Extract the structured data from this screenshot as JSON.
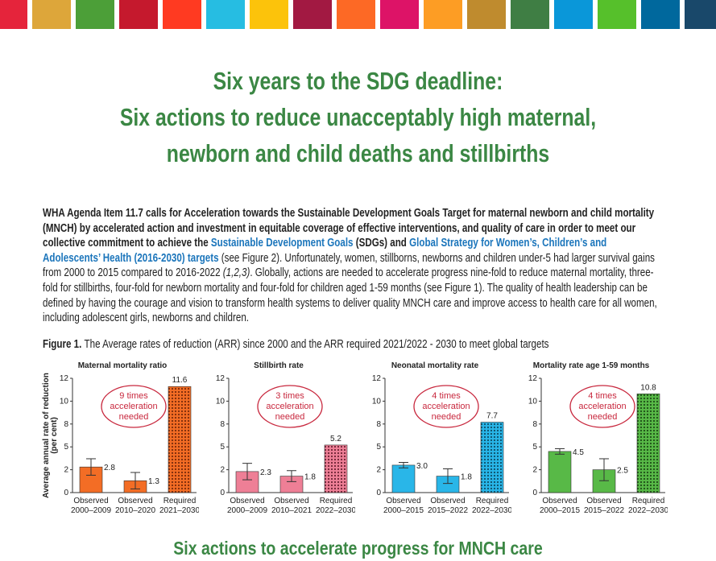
{
  "header": {
    "title": [
      "Six years to the SDG deadline:",
      "Six actions to reduce unacceptably high maternal,",
      "newborn and child deaths and stillbirths"
    ]
  },
  "intro": [
    {
      "kind": "bold",
      "text": "WHA Agenda Item 11.7 calls for Acceleration towards the Sustainable Development Goals Target for maternal newborn and child mortality (MNCH) by accelerated action and investment in equitable coverage of effective interventions, and quality of care in order to meet our collective commitment to achieve the "
    },
    {
      "kind": "link",
      "text": "Sustainable Development Goals"
    },
    {
      "kind": "bold",
      "text": " (SDGs) and "
    },
    {
      "kind": "link",
      "text": "Global Strategy for Women’s, Children’s and Adolescents’ Health (2016-2030) targets"
    },
    {
      "kind": "plain",
      "text": " (see Figure 2). Unfortunately, women, stillborns, newborns and children under-5 had larger survival gains from 2000 to 2015 compared to 2016-2022 "
    },
    {
      "kind": "italic",
      "text": "(1,2,3)"
    },
    {
      "kind": "plain",
      "text": ". Globally, actions are needed to accelerate progress nine-fold to reduce maternal mortality, three-fold for stillbirths, four-fold for newborn mortality and four-fold for children aged 1-59 months (see Figure 1). The quality of health leadership can be defined by having the courage and vision to transform health systems to deliver quality MNCH care and improve access to health care for all women, including adolescent girls, newborns and children."
    }
  ],
  "figure": {
    "label": "Figure 1.",
    "caption": "The Average rates of reduction (ARR) since 2000 and the ARR required 2021/2022 - 2030 to meet global targets"
  },
  "chart_data": [
    {
      "type": "bar",
      "title": "Maternal mortality ratio",
      "ylabel": [
        "Average annual rate of reduction",
        "(per cent)"
      ],
      "categories": [
        [
          "Observed",
          "2000–2009"
        ],
        [
          "Observed",
          "2010–2020"
        ],
        [
          "Required",
          "2021–2030"
        ]
      ],
      "values": [
        2.8,
        1.3,
        11.6
      ],
      "errors": [
        0.9,
        0.9,
        null
      ],
      "patterned": [
        false,
        false,
        true
      ],
      "color": "#f36d25",
      "dot_color": "#7a2a0a",
      "annotation": [
        "9 times",
        "acceleration",
        "needed"
      ],
      "ylim": [
        0,
        12.5
      ],
      "yticks": [
        0,
        {
          "value": 2.5,
          "label": "2"
        },
        5,
        {
          "value": 7.5,
          "label": "8"
        },
        10,
        {
          "value": 12.5,
          "label": "12"
        }
      ]
    },
    {
      "type": "bar",
      "title": "Stillbirth rate",
      "categories": [
        [
          "Observed",
          "2000–2009"
        ],
        [
          "Observed",
          "2010–2021"
        ],
        [
          "Required",
          "2022–2030"
        ]
      ],
      "values": [
        2.3,
        1.8,
        5.2
      ],
      "errors": [
        0.9,
        0.6,
        null
      ],
      "patterned": [
        false,
        false,
        true
      ],
      "color": "#ee7f96",
      "dot_color": "#6d2234",
      "annotation": [
        "3 times",
        "acceleration",
        "needed"
      ],
      "ylim": [
        0,
        12.5
      ],
      "yticks": [
        0,
        {
          "value": 2.5,
          "label": "2"
        },
        5,
        {
          "value": 7.5,
          "label": "8"
        },
        10,
        {
          "value": 12.5,
          "label": "12"
        }
      ]
    },
    {
      "type": "bar",
      "title": "Neonatal mortality rate",
      "categories": [
        [
          "Observed",
          "2000–2015"
        ],
        [
          "Observed",
          "2015–2022"
        ],
        [
          "Required",
          "2022–2030"
        ]
      ],
      "values": [
        3.0,
        1.8,
        7.7
      ],
      "value_labels": [
        "3.0",
        "1.8",
        "7.7"
      ],
      "errors": [
        0.3,
        0.8,
        null
      ],
      "patterned": [
        false,
        false,
        true
      ],
      "color": "#29b6e8",
      "dot_color": "#0d4d66",
      "annotation": [
        "4 times",
        "acceleration",
        "needed"
      ],
      "ylim": [
        0,
        12.5
      ],
      "yticks": [
        0,
        {
          "value": 2.5,
          "label": "2"
        },
        5,
        {
          "value": 7.5,
          "label": "8"
        },
        10,
        {
          "value": 12.5,
          "label": "12"
        }
      ]
    },
    {
      "type": "bar",
      "title": "Mortality rate age 1-59 months",
      "categories": [
        [
          "Observed",
          "2000–2015"
        ],
        [
          "Observed",
          "2015–2022"
        ],
        [
          "Required",
          "2022–2030"
        ]
      ],
      "values": [
        4.5,
        2.5,
        10.8
      ],
      "errors": [
        0.3,
        1.2,
        null
      ],
      "patterned": [
        false,
        false,
        true
      ],
      "color": "#58b947",
      "dot_color": "#1d4d17",
      "annotation": [
        "4 times",
        "acceleration",
        "needed"
      ],
      "ylim": [
        0,
        12.5
      ],
      "yticks": [
        0,
        {
          "value": 2.5,
          "label": "2"
        },
        5,
        {
          "value": 7.5,
          "label": "8"
        },
        10,
        {
          "value": 12.5,
          "label": "12"
        }
      ]
    }
  ],
  "footer": {
    "heading": "Six actions to accelerate progress for MNCH care"
  }
}
